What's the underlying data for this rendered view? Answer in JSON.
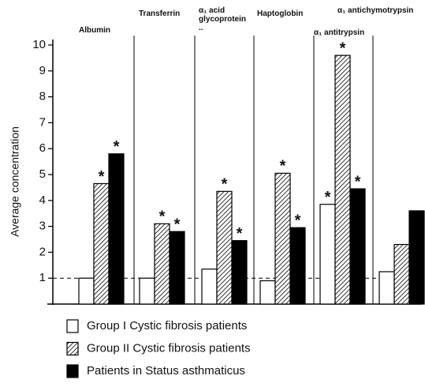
{
  "chart_data": {
    "type": "bar",
    "ylabel": "Average concentration",
    "categories": [
      "Albumin",
      "Transferrin",
      "α₁ acid glycoprotein ..",
      "Haptoglobin",
      "α₁ antitrypsin",
      "α₁ antichymotrypsin"
    ],
    "series": [
      {
        "name": "Group I  Cystic fibrosis patients",
        "color": "#ffffff",
        "values": [
          1.0,
          1.0,
          1.35,
          0.9,
          3.85,
          1.25
        ],
        "markers": [
          null,
          null,
          null,
          null,
          "*",
          null
        ]
      },
      {
        "name": "Group II Cystic fibrosis patients",
        "color": "#000000",
        "pattern": "diagonal",
        "values": [
          4.65,
          3.1,
          4.35,
          5.05,
          9.6,
          2.3
        ],
        "markers": [
          "*",
          "*",
          "*",
          "*",
          "*",
          null
        ]
      },
      {
        "name": "Patients in Status asthmaticus",
        "color": "#000000",
        "values": [
          5.8,
          2.8,
          2.45,
          2.95,
          4.45,
          3.6
        ],
        "markers": [
          "*",
          "*",
          "*",
          "*",
          "*",
          null
        ]
      }
    ],
    "ylim": [
      0,
      10
    ],
    "yticks": [
      1,
      2,
      3,
      4,
      5,
      6,
      7,
      8,
      9,
      10
    ],
    "reference_line": 1,
    "legend": "bottom"
  }
}
